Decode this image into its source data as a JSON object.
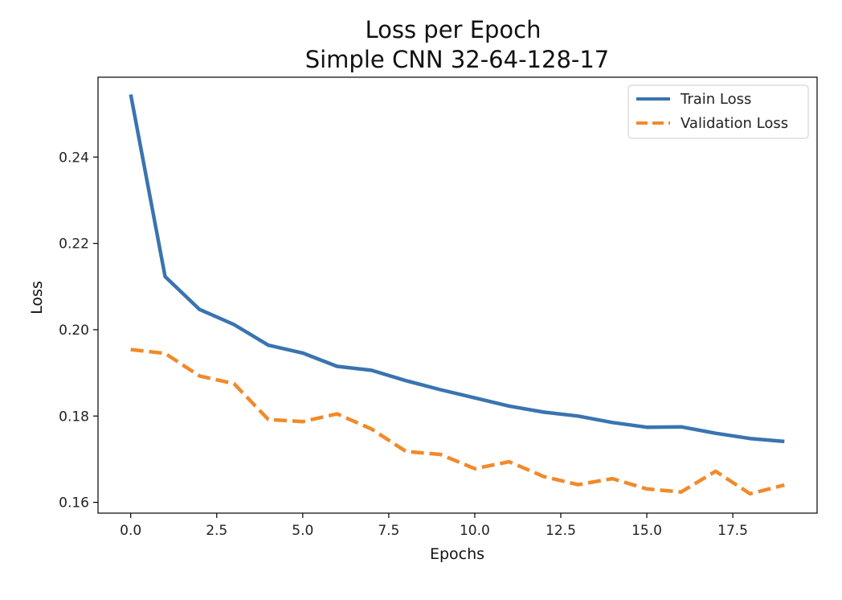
{
  "chart_data": {
    "type": "line",
    "title": "Loss per Epoch",
    "subtitle": "Simple CNN 32-64-128-17",
    "xlabel": "Epochs",
    "ylabel": "Loss",
    "xlim": [
      -0.95,
      19.95
    ],
    "ylim": [
      0.1575,
      0.2585
    ],
    "xticks": [
      0.0,
      2.5,
      5.0,
      7.5,
      10.0,
      12.5,
      15.0,
      17.5
    ],
    "xtick_labels": [
      "0.0",
      "2.5",
      "5.0",
      "7.5",
      "10.0",
      "12.5",
      "15.0",
      "17.5"
    ],
    "yticks": [
      0.16,
      0.18,
      0.2,
      0.22,
      0.24
    ],
    "ytick_labels": [
      "0.16",
      "0.18",
      "0.20",
      "0.22",
      "0.24"
    ],
    "grid": false,
    "legend_position": "top-right",
    "x": [
      0,
      1,
      2,
      3,
      4,
      5,
      6,
      7,
      8,
      9,
      10,
      11,
      12,
      13,
      14,
      15,
      16,
      17,
      18,
      19
    ],
    "series": [
      {
        "name": "Train Loss",
        "color": "#3a74b0",
        "style": "solid",
        "values": [
          0.2545,
          0.2123,
          0.2047,
          0.2012,
          0.1964,
          0.1946,
          0.1915,
          0.1906,
          0.1882,
          0.1861,
          0.1842,
          0.1823,
          0.1809,
          0.18,
          0.1785,
          0.1774,
          0.1775,
          0.176,
          0.1748,
          0.1741
        ]
      },
      {
        "name": "Validation Loss",
        "color": "#f08a2c",
        "style": "dashed",
        "values": [
          0.1954,
          0.1945,
          0.1893,
          0.1875,
          0.1792,
          0.1787,
          0.1805,
          0.177,
          0.1718,
          0.1711,
          0.1678,
          0.1694,
          0.166,
          0.1641,
          0.1655,
          0.1631,
          0.1624,
          0.1672,
          0.162,
          0.164
        ]
      }
    ]
  }
}
